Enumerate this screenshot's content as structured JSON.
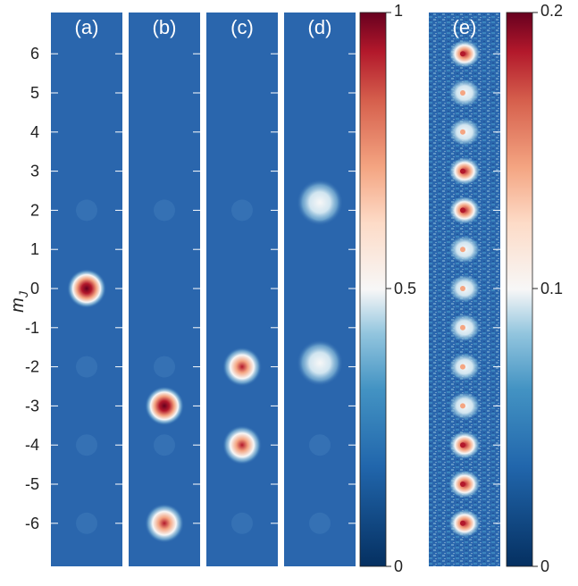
{
  "figure": {
    "y_axis_label": "m_J",
    "y_ticks": [
      "6",
      "5",
      "4",
      "3",
      "2",
      "1",
      "0",
      "-1",
      "-2",
      "-3",
      "-4",
      "-5",
      "-6"
    ],
    "colors": {
      "cmap_low": "#053061",
      "cmap_midlow": "#2166ac",
      "cmap_mid": "#f7f7f7",
      "cmap_midhigh": "#f4a582",
      "cmap_high": "#67001f",
      "background": "#2a66ad",
      "separator": "#ffffff"
    },
    "panels": [
      {
        "label": "(a)",
        "spots": [
          {
            "mJ": 0,
            "intensity": 1.0
          }
        ]
      },
      {
        "label": "(b)",
        "spots": [
          {
            "mJ": -3,
            "intensity": 0.95
          },
          {
            "mJ": -6,
            "intensity": 0.85
          }
        ]
      },
      {
        "label": "(c)",
        "spots": [
          {
            "mJ": -2,
            "intensity": 0.8
          },
          {
            "mJ": -4,
            "intensity": 0.75
          }
        ]
      },
      {
        "label": "(d)",
        "spots": [
          {
            "mJ": 2.2,
            "intensity": 0.5
          },
          {
            "mJ": -1.9,
            "intensity": 0.5
          }
        ]
      }
    ],
    "colorbar_1": {
      "max_label": "1",
      "mid_label": "0.5",
      "min_label": "0"
    },
    "panel_e": {
      "label": "(e)",
      "spots_mJ": [
        6,
        5,
        4,
        3,
        2,
        1,
        0,
        -1,
        -2,
        -3,
        -4,
        -5,
        -6
      ]
    },
    "colorbar_2": {
      "max_label": "0.2",
      "mid_label": "0.1",
      "min_label": "0"
    }
  }
}
